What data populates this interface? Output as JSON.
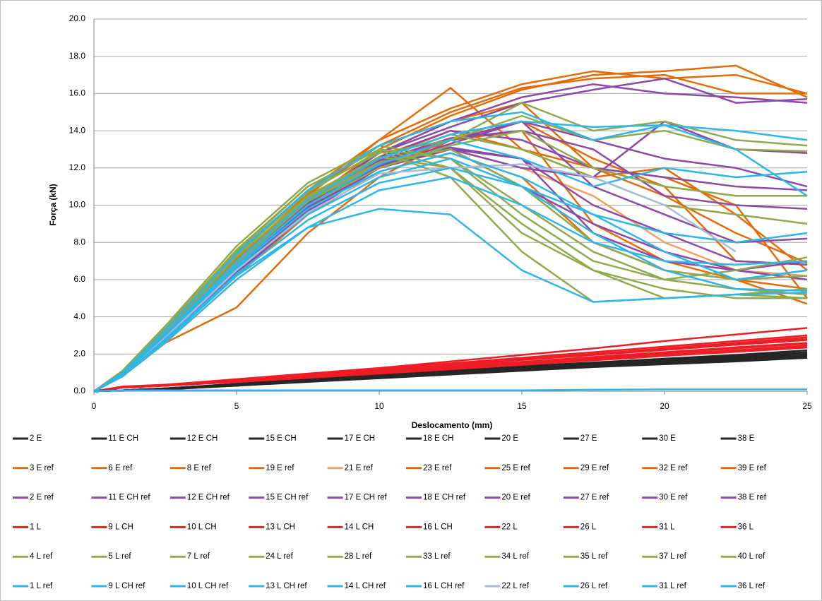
{
  "chart_data": {
    "type": "line",
    "x_label": "Deslocamento (mm)",
    "y_label": "Força (kN)",
    "x": [
      0,
      1,
      2.5,
      5,
      7.5,
      10,
      12.5,
      15,
      17.5,
      20,
      22.5,
      25
    ],
    "xlim": [
      0,
      25
    ],
    "xticks": [
      0,
      5,
      10,
      15,
      20,
      25
    ],
    "ylim": [
      0,
      20
    ],
    "yticks": [
      {
        "value": 0,
        "label": "0.0"
      },
      {
        "value": 2,
        "label": "2.0"
      },
      {
        "value": 4,
        "label": "4.0"
      },
      {
        "value": 6,
        "label": "6.0"
      },
      {
        "value": 8,
        "label": "8.0"
      },
      {
        "value": 10,
        "label": "10.0"
      },
      {
        "value": 12,
        "label": "12.0"
      },
      {
        "value": 14,
        "label": "14.0"
      },
      {
        "value": 16,
        "label": "16.0"
      },
      {
        "value": 18,
        "label": "18.0"
      },
      {
        "value": 20,
        "label": "20.0"
      }
    ],
    "grid": true,
    "legend": "bottom",
    "series": [
      {
        "name": "2 E",
        "color": "#262626",
        "values": [
          0,
          0.05,
          0.15,
          0.35,
          0.6,
          0.8,
          1.0,
          1.2,
          1.4,
          1.55,
          1.7,
          1.85
        ]
      },
      {
        "name": "11 E CH",
        "color": "#262626",
        "values": [
          0,
          0.05,
          0.12,
          0.3,
          0.55,
          0.75,
          0.95,
          1.15,
          1.35,
          1.5,
          1.65,
          1.8
        ]
      },
      {
        "name": "12 E CH",
        "color": "#262626",
        "values": [
          0,
          0.05,
          0.15,
          0.38,
          0.62,
          0.85,
          1.05,
          1.25,
          1.45,
          1.65,
          1.85,
          2.0
        ]
      },
      {
        "name": "15 E CH",
        "color": "#262626",
        "values": [
          0,
          0.04,
          0.1,
          0.3,
          0.5,
          0.7,
          0.9,
          1.1,
          1.3,
          1.45,
          1.6,
          1.8
        ]
      },
      {
        "name": "17 E CH",
        "color": "#262626",
        "values": [
          0,
          0.05,
          0.15,
          0.4,
          0.65,
          0.9,
          1.1,
          1.3,
          1.5,
          1.7,
          1.9,
          2.1
        ]
      },
      {
        "name": "18 E CH",
        "color": "#262626",
        "values": [
          0,
          0.05,
          0.12,
          0.35,
          0.6,
          0.8,
          1.0,
          1.2,
          1.4,
          1.6,
          1.8,
          1.95
        ]
      },
      {
        "name": "20 E",
        "color": "#262626",
        "values": [
          0,
          0.05,
          0.15,
          0.4,
          0.65,
          0.9,
          1.15,
          1.35,
          1.55,
          1.75,
          1.95,
          2.2
        ]
      },
      {
        "name": "27 E",
        "color": "#262626",
        "values": [
          0,
          0.04,
          0.12,
          0.33,
          0.55,
          0.78,
          0.98,
          1.18,
          1.38,
          1.55,
          1.72,
          1.9
        ]
      },
      {
        "name": "30 E",
        "color": "#262626",
        "values": [
          0,
          0.05,
          0.14,
          0.36,
          0.6,
          0.82,
          1.02,
          1.22,
          1.42,
          1.6,
          1.78,
          1.95
        ]
      },
      {
        "name": "38 E",
        "color": "#262626",
        "values": [
          0,
          0.05,
          0.15,
          0.38,
          0.62,
          0.86,
          1.08,
          1.28,
          1.48,
          1.68,
          1.88,
          2.05
        ]
      },
      {
        "name": "3 E ref",
        "color": "#e36c0a",
        "values": [
          0,
          1.0,
          3.3,
          7.3,
          10.8,
          13.5,
          15.2,
          16.5,
          17.2,
          16.8,
          17.0,
          16.0
        ]
      },
      {
        "name": "6 E ref",
        "color": "#e36c0a",
        "values": [
          0,
          0.9,
          3.0,
          6.8,
          10.2,
          13.0,
          14.8,
          16.2,
          17.0,
          17.2,
          17.5,
          15.8
        ]
      },
      {
        "name": "8 E ref",
        "color": "#e36c0a",
        "values": [
          0,
          0.8,
          2.6,
          4.5,
          8.5,
          11.5,
          13.5,
          14.5,
          12.5,
          11.0,
          7.0,
          6.8
        ]
      },
      {
        "name": "19 E ref",
        "color": "#e36c0a",
        "values": [
          0,
          0.9,
          2.8,
          6.5,
          10.0,
          12.5,
          14.0,
          13.0,
          11.5,
          12.0,
          9.5,
          6.5
        ]
      },
      {
        "name": "21 E ref",
        "color": "#f0a062",
        "values": [
          0,
          0.9,
          2.9,
          6.7,
          10.0,
          12.3,
          13.0,
          12.0,
          10.5,
          8.0,
          6.5,
          6.2
        ]
      },
      {
        "name": "23 E ref",
        "color": "#e36c0a",
        "values": [
          0,
          1.0,
          3.2,
          7.0,
          10.5,
          13.5,
          16.3,
          13.0,
          12.0,
          11.5,
          10.0,
          5.0
        ]
      },
      {
        "name": "25 E ref",
        "color": "#e36c0a",
        "values": [
          0,
          0.9,
          2.9,
          6.6,
          9.8,
          12.0,
          13.5,
          14.0,
          9.0,
          7.0,
          6.0,
          4.7
        ]
      },
      {
        "name": "29 E ref",
        "color": "#e36c0a",
        "values": [
          0,
          0.8,
          2.7,
          6.2,
          9.5,
          11.8,
          12.8,
          11.5,
          8.0,
          6.5,
          6.0,
          5.5
        ]
      },
      {
        "name": "32 E ref",
        "color": "#e36c0a",
        "values": [
          0,
          0.9,
          3.0,
          6.9,
          10.3,
          12.8,
          14.5,
          15.5,
          12.0,
          10.5,
          8.5,
          6.9
        ]
      },
      {
        "name": "39 E ref",
        "color": "#e36c0a",
        "values": [
          0,
          1.0,
          3.1,
          7.1,
          10.6,
          13.2,
          15.0,
          16.3,
          16.8,
          17.0,
          16.0,
          16.0
        ]
      },
      {
        "name": "2 E ref",
        "color": "#8a4aa6",
        "values": [
          0,
          0.9,
          3.0,
          6.8,
          10.2,
          12.8,
          14.5,
          15.8,
          16.5,
          16.0,
          15.8,
          15.5
        ]
      },
      {
        "name": "11 E CH ref",
        "color": "#8a4aa6",
        "values": [
          0,
          0.9,
          2.9,
          6.6,
          9.9,
          12.3,
          13.5,
          14.5,
          11.0,
          9.5,
          8.0,
          8.2
        ]
      },
      {
        "name": "12 E CH ref",
        "color": "#8a4aa6",
        "values": [
          0,
          0.8,
          2.8,
          6.5,
          9.8,
          12.0,
          13.0,
          12.5,
          10.0,
          8.5,
          7.0,
          6.8
        ]
      },
      {
        "name": "15 E CH ref",
        "color": "#8a4aa6",
        "values": [
          0,
          0.9,
          3.0,
          6.9,
          10.3,
          12.8,
          14.2,
          15.5,
          16.2,
          16.8,
          15.5,
          15.7
        ]
      },
      {
        "name": "17 E CH ref",
        "color": "#8a4aa6",
        "values": [
          0,
          0.9,
          2.9,
          6.7,
          10.0,
          12.4,
          13.6,
          14.0,
          13.0,
          10.5,
          10.0,
          9.8
        ]
      },
      {
        "name": "18 E CH ref",
        "color": "#8a4aa6",
        "values": [
          0,
          0.8,
          2.7,
          6.3,
          9.6,
          12.0,
          13.0,
          11.0,
          9.0,
          7.5,
          6.5,
          6.0
        ]
      },
      {
        "name": "20 E ref",
        "color": "#8a4aa6",
        "values": [
          0,
          0.9,
          3.0,
          6.8,
          10.1,
          12.6,
          14.0,
          13.5,
          12.0,
          11.5,
          11.0,
          10.8
        ]
      },
      {
        "name": "27 E ref",
        "color": "#8a4aa6",
        "values": [
          0,
          0.9,
          2.8,
          6.4,
          9.7,
          12.1,
          13.3,
          14.5,
          13.5,
          12.5,
          12.0,
          11.0
        ]
      },
      {
        "name": "30 E ref",
        "color": "#8a4aa6",
        "values": [
          0,
          0.9,
          2.9,
          6.6,
          9.9,
          12.2,
          13.0,
          12.0,
          11.5,
          14.5,
          13.0,
          12.8
        ]
      },
      {
        "name": "38 E ref",
        "color": "#8a4aa6",
        "values": [
          0,
          0.8,
          2.8,
          6.5,
          9.8,
          12.2,
          13.1,
          12.5,
          8.5,
          7.0,
          6.5,
          7.0
        ]
      },
      {
        "name": "1 L",
        "color": "#ee1c25",
        "values": [
          0,
          0.25,
          0.35,
          0.65,
          0.95,
          1.25,
          1.6,
          1.95,
          2.3,
          2.7,
          3.05,
          3.4
        ]
      },
      {
        "name": "9 L CH",
        "color": "#ee1c25",
        "values": [
          0,
          0.2,
          0.3,
          0.5,
          0.72,
          0.95,
          1.18,
          1.42,
          1.66,
          1.9,
          2.12,
          2.35
        ]
      },
      {
        "name": "10 L CH",
        "color": "#ee1c25",
        "values": [
          0,
          0.2,
          0.32,
          0.55,
          0.8,
          1.05,
          1.3,
          1.55,
          1.8,
          2.05,
          2.3,
          2.55
        ]
      },
      {
        "name": "13 L CH",
        "color": "#ee1c25",
        "values": [
          0,
          0.22,
          0.33,
          0.58,
          0.85,
          1.12,
          1.4,
          1.68,
          1.95,
          2.22,
          2.5,
          2.75
        ]
      },
      {
        "name": "14 L CH",
        "color": "#ee1c25",
        "values": [
          0,
          0.2,
          0.3,
          0.52,
          0.76,
          1.0,
          1.24,
          1.48,
          1.72,
          1.96,
          2.2,
          2.45
        ]
      },
      {
        "name": "16 L CH",
        "color": "#ee1c25",
        "values": [
          0,
          0.22,
          0.34,
          0.6,
          0.88,
          1.16,
          1.44,
          1.72,
          2.0,
          2.3,
          2.6,
          2.9
        ]
      },
      {
        "name": "22 L",
        "color": "#ee1c25",
        "values": [
          0,
          0.2,
          0.3,
          0.54,
          0.8,
          1.06,
          1.32,
          1.58,
          1.84,
          2.1,
          2.36,
          2.6
        ]
      },
      {
        "name": "26 L",
        "color": "#ee1c25",
        "values": [
          0,
          0.22,
          0.33,
          0.6,
          0.88,
          1.15,
          1.42,
          1.7,
          1.98,
          2.26,
          2.54,
          2.8
        ]
      },
      {
        "name": "31 L",
        "color": "#ee1c25",
        "values": [
          0,
          0.23,
          0.35,
          0.62,
          0.9,
          1.2,
          1.5,
          1.8,
          2.1,
          2.4,
          2.7,
          3.0
        ]
      },
      {
        "name": "36 L",
        "color": "#ee1c25",
        "values": [
          0,
          0.2,
          0.3,
          0.5,
          0.74,
          0.98,
          1.22,
          1.46,
          1.7,
          1.94,
          2.16,
          2.4
        ]
      },
      {
        "name": "4 L ref",
        "color": "#8fa94e",
        "values": [
          0,
          1.1,
          3.5,
          7.8,
          11.2,
          13.2,
          12.5,
          10.0,
          7.5,
          6.0,
          5.5,
          5.2
        ]
      },
      {
        "name": "5 L ref",
        "color": "#8fa94e",
        "values": [
          0,
          1.0,
          3.3,
          7.4,
          10.8,
          12.8,
          13.5,
          15.5,
          14.0,
          14.5,
          13.5,
          13.2
        ]
      },
      {
        "name": "7 L ref",
        "color": "#8fa94e",
        "values": [
          0,
          1.0,
          3.2,
          7.2,
          10.5,
          12.6,
          12.0,
          8.5,
          6.5,
          5.5,
          5.0,
          5.0
        ]
      },
      {
        "name": "24 L ref",
        "color": "#8fa94e",
        "values": [
          0,
          0.9,
          3.1,
          7.0,
          10.3,
          12.3,
          13.0,
          11.0,
          8.0,
          6.5,
          6.0,
          6.2
        ]
      },
      {
        "name": "28 L ref",
        "color": "#8fa94e",
        "values": [
          0,
          1.0,
          3.3,
          7.5,
          11.0,
          13.0,
          12.0,
          9.0,
          6.5,
          5.0,
          5.2,
          5.5
        ]
      },
      {
        "name": "33 L ref",
        "color": "#8fa94e",
        "values": [
          0,
          0.9,
          3.0,
          6.9,
          10.2,
          12.2,
          13.5,
          14.8,
          13.5,
          14.0,
          13.0,
          12.9
        ]
      },
      {
        "name": "34 L ref",
        "color": "#8fa94e",
        "values": [
          0,
          1.0,
          3.2,
          7.3,
          10.7,
          12.9,
          11.5,
          7.5,
          4.8,
          5.0,
          5.2,
          5.0
        ]
      },
      {
        "name": "35 L ref",
        "color": "#8fa94e",
        "values": [
          0,
          0.9,
          3.1,
          7.0,
          10.4,
          12.5,
          13.8,
          13.0,
          11.5,
          10.0,
          9.5,
          9.0
        ]
      },
      {
        "name": "37 L ref",
        "color": "#8fa94e",
        "values": [
          0,
          1.0,
          3.4,
          7.6,
          11.0,
          13.0,
          12.5,
          9.5,
          7.0,
          6.0,
          6.5,
          7.2
        ]
      },
      {
        "name": "40 L ref",
        "color": "#8fa94e",
        "values": [
          0,
          0.9,
          3.0,
          6.8,
          10.0,
          12.0,
          13.2,
          14.0,
          12.0,
          11.0,
          10.5,
          10.5
        ]
      },
      {
        "name": "1 L ref",
        "color": "#2fb5e6",
        "values": [
          0,
          0.05,
          0.05,
          0.05,
          0.05,
          0.05,
          0.05,
          0.05,
          0.08,
          0.1,
          0.1,
          0.1
        ]
      },
      {
        "name": "9 L CH ref",
        "color": "#2fb5e6",
        "values": [
          0,
          0.9,
          2.9,
          6.6,
          9.5,
          11.5,
          12.5,
          11.0,
          9.5,
          8.5,
          8.0,
          8.5
        ]
      },
      {
        "name": "10 L CH ref",
        "color": "#2fb5e6",
        "values": [
          0,
          0.8,
          2.7,
          6.2,
          8.8,
          9.8,
          9.5,
          6.5,
          4.8,
          5.0,
          5.2,
          5.3
        ]
      },
      {
        "name": "13 L CH ref",
        "color": "#2fb5e6",
        "values": [
          0,
          1.0,
          3.3,
          7.4,
          10.8,
          13.2,
          14.5,
          15.0,
          13.5,
          14.3,
          14.0,
          13.5
        ]
      },
      {
        "name": "14 L CH ref",
        "color": "#2fb5e6",
        "values": [
          0,
          0.9,
          3.0,
          6.8,
          10.0,
          12.2,
          13.5,
          12.5,
          11.0,
          12.0,
          11.5,
          11.8
        ]
      },
      {
        "name": "16 L CH ref",
        "color": "#2fb5e6",
        "values": [
          0,
          0.9,
          3.1,
          7.0,
          10.3,
          12.5,
          13.8,
          14.5,
          14.2,
          14.3,
          13.0,
          10.5
        ]
      },
      {
        "name": "22 L ref",
        "color": "#a9bcd6",
        "values": [
          0,
          0.9,
          2.9,
          6.5,
          9.6,
          11.7,
          12.0,
          12.2,
          11.5,
          10.0,
          7.5,
          null
        ]
      },
      {
        "name": "26 L ref",
        "color": "#2fb5e6",
        "values": [
          0,
          0.8,
          2.6,
          6.0,
          8.8,
          10.8,
          11.5,
          10.0,
          8.0,
          7.0,
          6.8,
          7.0
        ]
      },
      {
        "name": "31 L ref",
        "color": "#2fb5e6",
        "values": [
          0,
          0.9,
          3.0,
          6.7,
          9.8,
          11.8,
          12.8,
          11.5,
          9.5,
          7.5,
          6.0,
          6.5
        ]
      },
      {
        "name": "36 L ref",
        "color": "#2fb5e6",
        "values": [
          0,
          0.8,
          2.8,
          6.3,
          9.2,
          11.2,
          12.0,
          11.0,
          8.5,
          6.5,
          5.5,
          5.4
        ]
      }
    ]
  }
}
